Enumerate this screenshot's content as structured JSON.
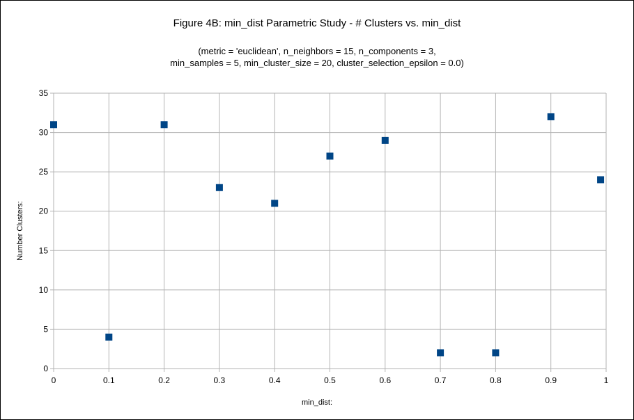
{
  "chart_data": {
    "type": "scatter",
    "title": "Figure 4B: min_dist Parametric Study - # Clusters vs. min_dist",
    "subtitle_lines": [
      "(metric = 'euclidean', n_neighbors = 15, n_components = 3,",
      "min_samples = 5, min_cluster_size = 20, cluster_selection_epsilon = 0.0)"
    ],
    "xlabel": "min_dist:",
    "ylabel": "Number Clusters:",
    "xlim": [
      0,
      1
    ],
    "ylim": [
      0,
      35
    ],
    "xticks": [
      "0",
      "0.1",
      "0.2",
      "0.3",
      "0.4",
      "0.5",
      "0.6",
      "0.7",
      "0.8",
      "0.9",
      "1"
    ],
    "yticks": [
      "0",
      "5",
      "10",
      "15",
      "20",
      "25",
      "30",
      "35"
    ],
    "grid": true,
    "legend": "none",
    "marker": "square",
    "marker_color": "#004586",
    "grid_color": "#b3b3b3",
    "series": [
      {
        "x": [
          0,
          0.1,
          0.2,
          0.3,
          0.4,
          0.5,
          0.6,
          0.7,
          0.8,
          0.9,
          0.99
        ],
        "y": [
          31,
          4,
          31,
          23,
          21,
          27,
          29,
          2,
          2,
          32,
          24
        ]
      }
    ]
  }
}
